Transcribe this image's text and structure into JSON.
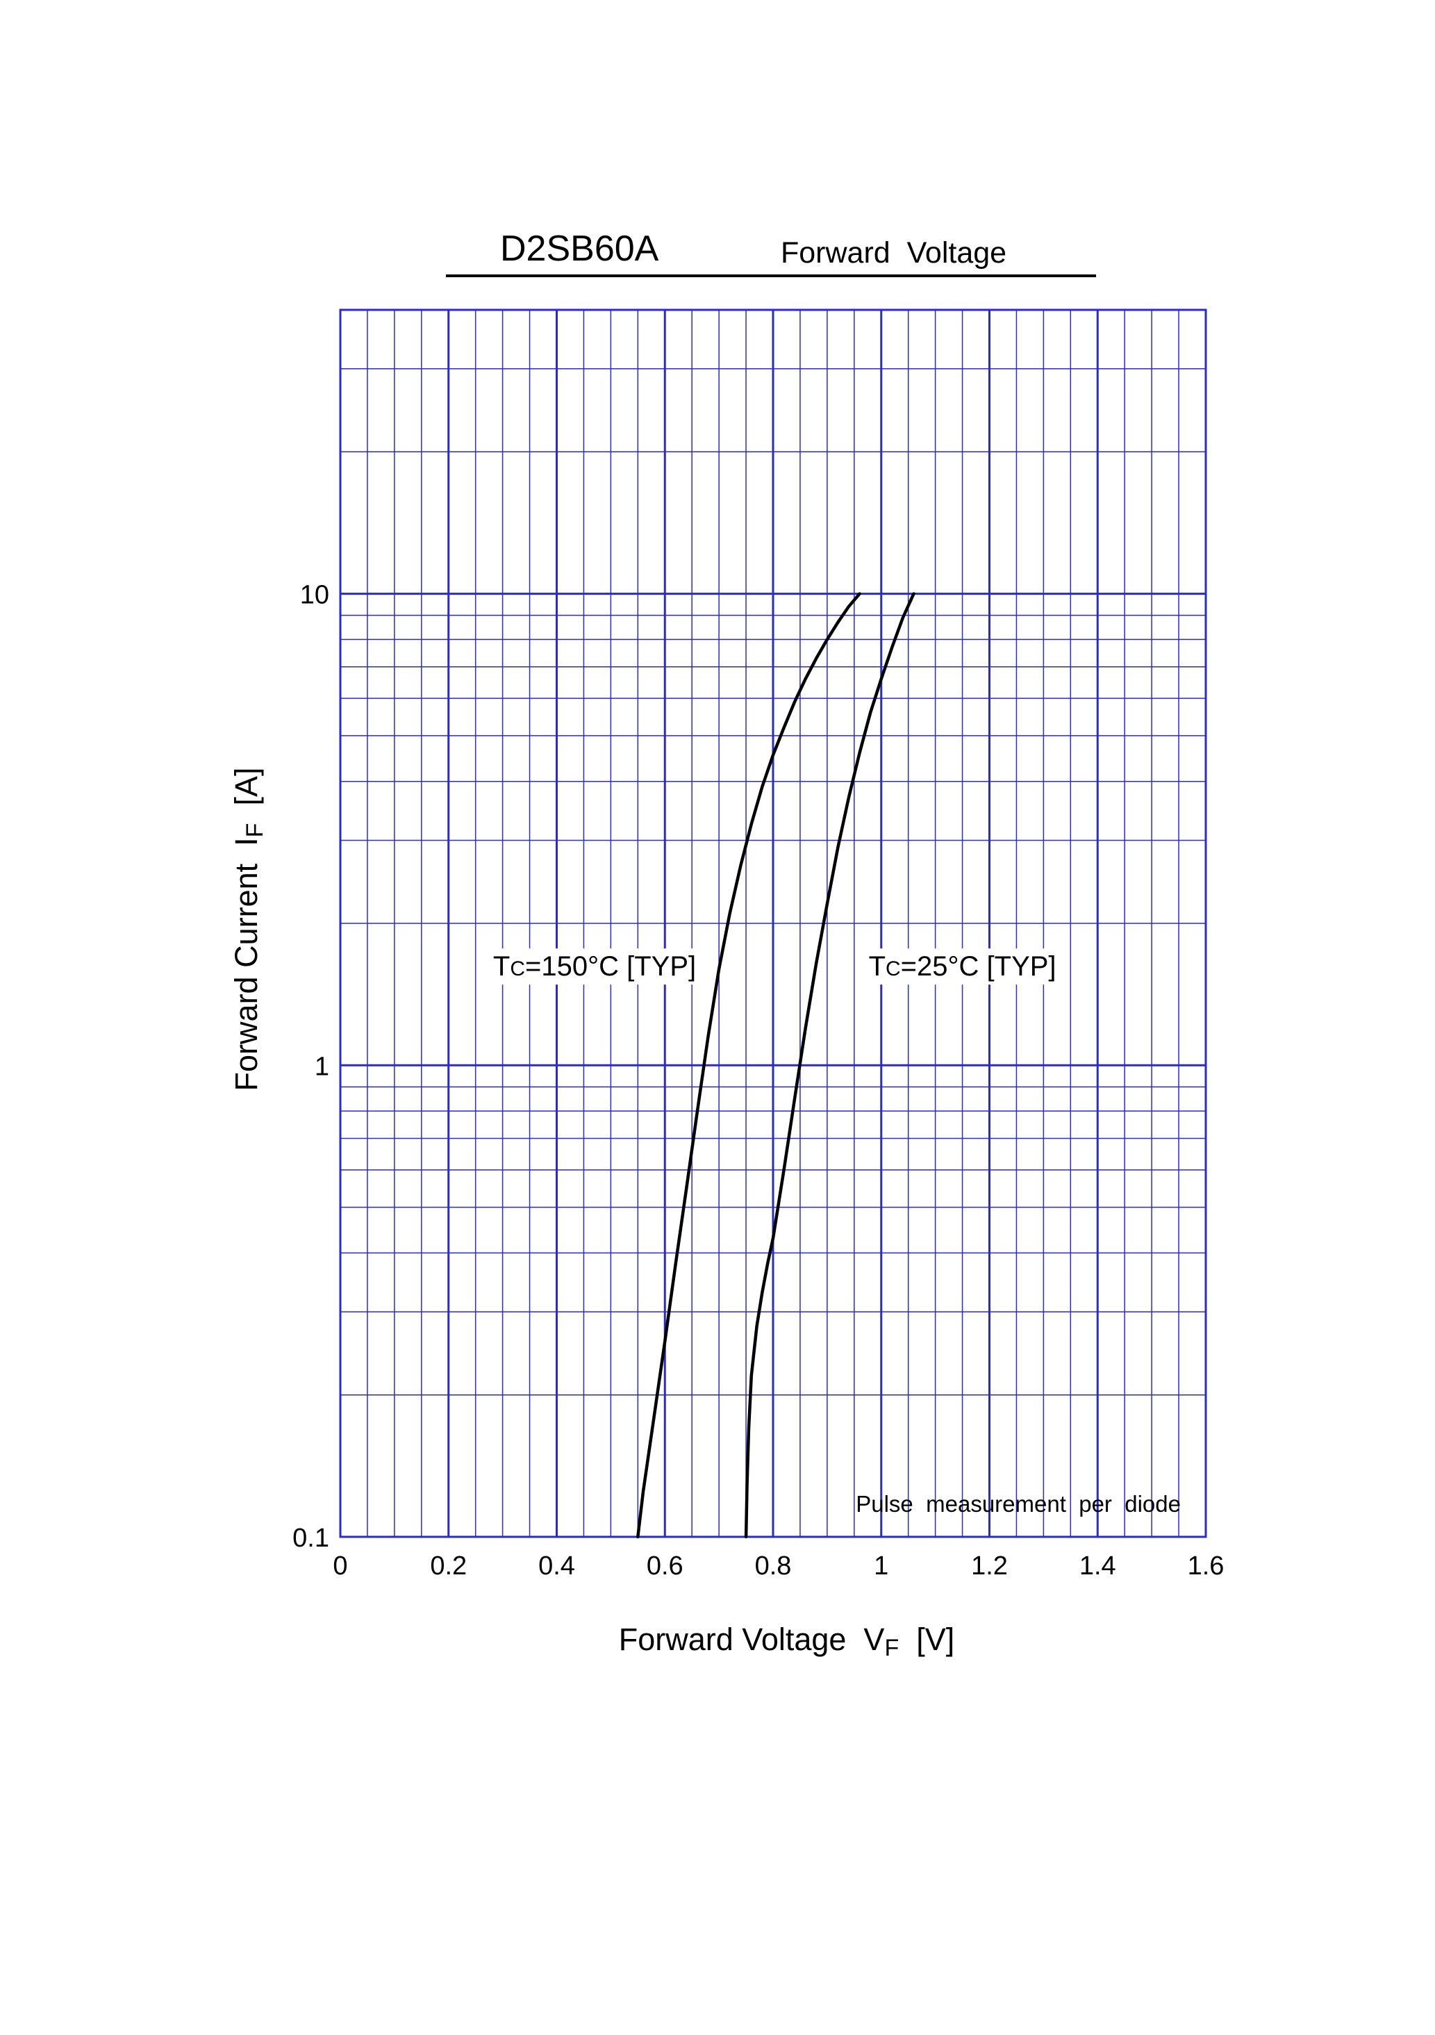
{
  "chart_data": {
    "type": "line",
    "title": "D2SB60A",
    "subtitle": "Forward  Voltage",
    "xlabel": {
      "main": "Forward Voltage  V",
      "sub": "F",
      "unit": "  [V]"
    },
    "ylabel": {
      "main": "Forward Current  I",
      "sub": "F",
      "unit": "  [A]"
    },
    "x_scale": "linear",
    "y_scale": "log",
    "xlim": [
      0,
      1.6
    ],
    "ylim": [
      0.1,
      40
    ],
    "x_ticks": [
      0,
      0.2,
      0.4,
      0.6,
      0.8,
      1,
      1.2,
      1.4,
      1.6
    ],
    "x_tick_labels": [
      "0",
      "0.2",
      "0.4",
      "0.6",
      "0.8",
      "1",
      "1.2",
      "1.4",
      "1.6"
    ],
    "y_ticks": [
      0.1,
      1,
      10
    ],
    "y_tick_labels": [
      "0.1",
      "1",
      "10"
    ],
    "grid": true,
    "grid_color": "#2a2ad0",
    "curve_color": "#000000",
    "note": "Pulse  measurement  per  diode",
    "series": [
      {
        "name": "Tc=150°C [TYP]",
        "label_parts": {
          "t": "T",
          "sub": "C",
          "rest": "=150°C [TYP]"
        },
        "label_anchor": [
          0.47,
          1.55
        ],
        "x": [
          0.55,
          0.56,
          0.58,
          0.6,
          0.62,
          0.64,
          0.66,
          0.68,
          0.7,
          0.72,
          0.74,
          0.76,
          0.78,
          0.8,
          0.82,
          0.84,
          0.86,
          0.88,
          0.9,
          0.92,
          0.94,
          0.96
        ],
        "y": [
          0.1,
          0.125,
          0.18,
          0.26,
          0.38,
          0.55,
          0.8,
          1.15,
          1.6,
          2.1,
          2.65,
          3.25,
          3.9,
          4.55,
          5.2,
          5.9,
          6.6,
          7.3,
          8.0,
          8.7,
          9.4,
          10.0
        ]
      },
      {
        "name": "Tc=25°C [TYP]",
        "label_parts": {
          "t": "T",
          "sub": "C",
          "rest": "=25°C [TYP]"
        },
        "label_anchor": [
          1.15,
          1.55
        ],
        "x": [
          0.75,
          0.752,
          0.755,
          0.76,
          0.77,
          0.78,
          0.79,
          0.8,
          0.82,
          0.84,
          0.86,
          0.88,
          0.9,
          0.92,
          0.94,
          0.96,
          0.98,
          1.0,
          1.02,
          1.04,
          1.06
        ],
        "y": [
          0.1,
          0.13,
          0.17,
          0.22,
          0.28,
          0.33,
          0.38,
          0.43,
          0.6,
          0.85,
          1.2,
          1.65,
          2.2,
          2.9,
          3.7,
          4.6,
          5.6,
          6.6,
          7.7,
          8.9,
          10.0
        ]
      }
    ]
  }
}
